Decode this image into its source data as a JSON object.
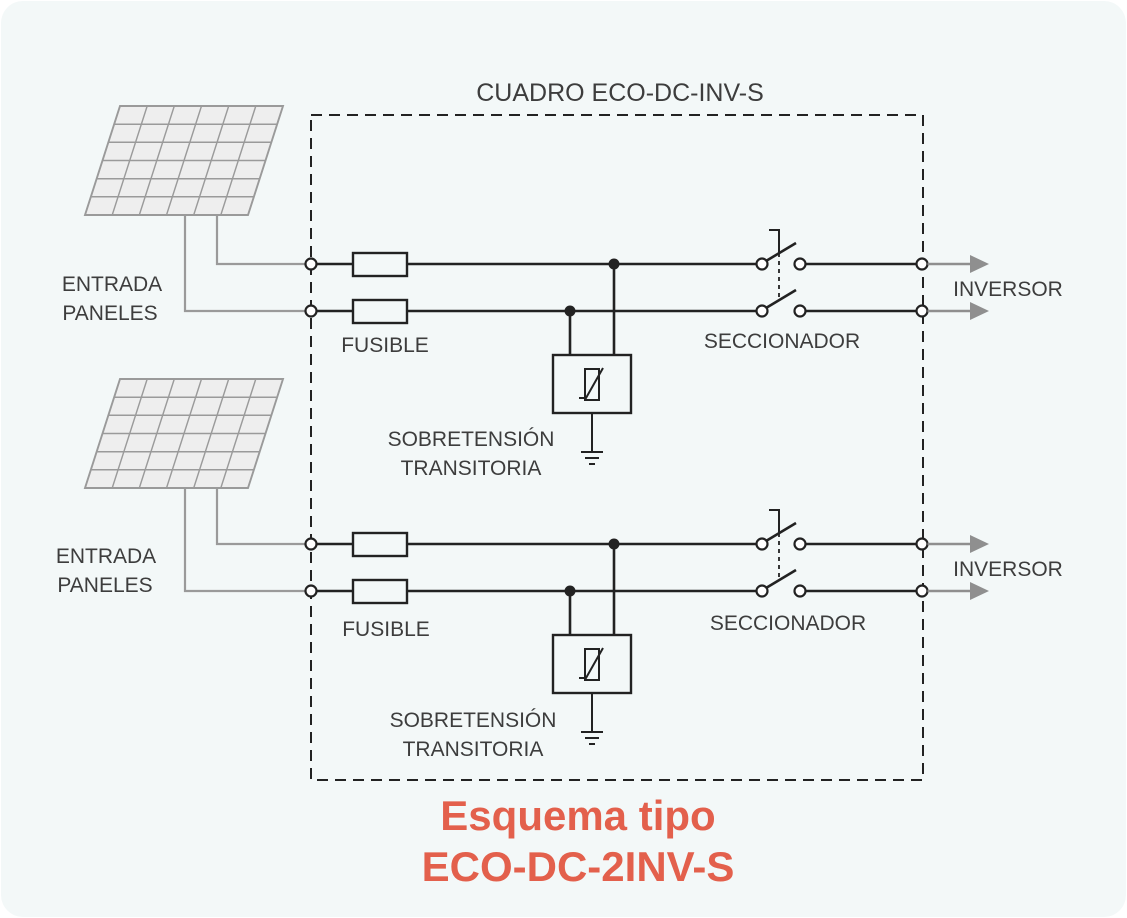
{
  "diagram": {
    "title": "CUADRO ECO-DC-INV-S"
  },
  "circuits": [
    {
      "input": {
        "line1": "ENTRADA",
        "line2": "PANELES",
        "icon": "solar-panel-icon"
      },
      "fuse": {
        "label": "FUSIBLE",
        "icon": "fuse-icon"
      },
      "surge": {
        "line1": "SOBRETENSIÓN",
        "line2": "TRANSITORIA",
        "icon": "varistor-icon",
        "ground_icon": "ground-icon"
      },
      "switch": {
        "label": "SECCIONADOR",
        "icon": "disconnect-switch-icon"
      },
      "output": {
        "label": "INVERSOR",
        "icon": "arrow-right-icon"
      }
    },
    {
      "input": {
        "line1": "ENTRADA",
        "line2": "PANELES",
        "icon": "solar-panel-icon"
      },
      "fuse": {
        "label": "FUSIBLE",
        "icon": "fuse-icon"
      },
      "surge": {
        "line1": "SOBRETENSIÓN",
        "line2": "TRANSITORIA",
        "icon": "varistor-icon",
        "ground_icon": "ground-icon"
      },
      "switch": {
        "label": "SECCIONADOR",
        "icon": "disconnect-switch-icon"
      },
      "output": {
        "label": "INVERSOR",
        "icon": "arrow-right-icon"
      }
    }
  ],
  "caption": {
    "line1": "Esquema tipo",
    "line2": "ECO-DC-2INV-S"
  },
  "colors": {
    "background": "#f3f8f8",
    "line": "#222222",
    "wire": "#9a9a9a",
    "panel_fill": "#eeeeee",
    "arrow": "#8f8f8f",
    "text": "#3d3d3d",
    "caption": "#e3604c"
  }
}
